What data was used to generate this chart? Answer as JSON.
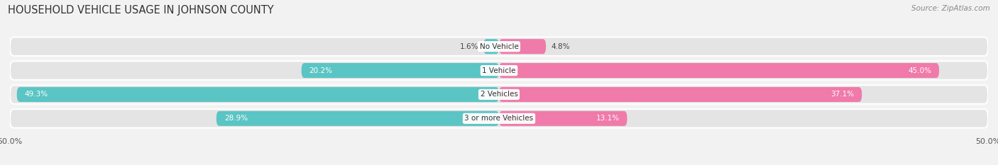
{
  "title": "HOUSEHOLD VEHICLE USAGE IN JOHNSON COUNTY",
  "source": "Source: ZipAtlas.com",
  "categories": [
    "No Vehicle",
    "1 Vehicle",
    "2 Vehicles",
    "3 or more Vehicles"
  ],
  "owner_values": [
    1.6,
    20.2,
    49.3,
    28.9
  ],
  "renter_values": [
    4.8,
    45.0,
    37.1,
    13.1
  ],
  "owner_color": "#5bc4c4",
  "renter_color": "#f07aaa",
  "xlim": 50.0,
  "background_color": "#f2f2f2",
  "bar_bg_color": "#e4e4e4",
  "title_fontsize": 10.5,
  "source_fontsize": 7.5,
  "label_fontsize": 7.5,
  "tick_fontsize": 8,
  "legend_fontsize": 8,
  "bar_height": 0.62,
  "category_label_fontsize": 7.5,
  "value_label_color_inside": "white",
  "value_label_color_outside": "#444444"
}
